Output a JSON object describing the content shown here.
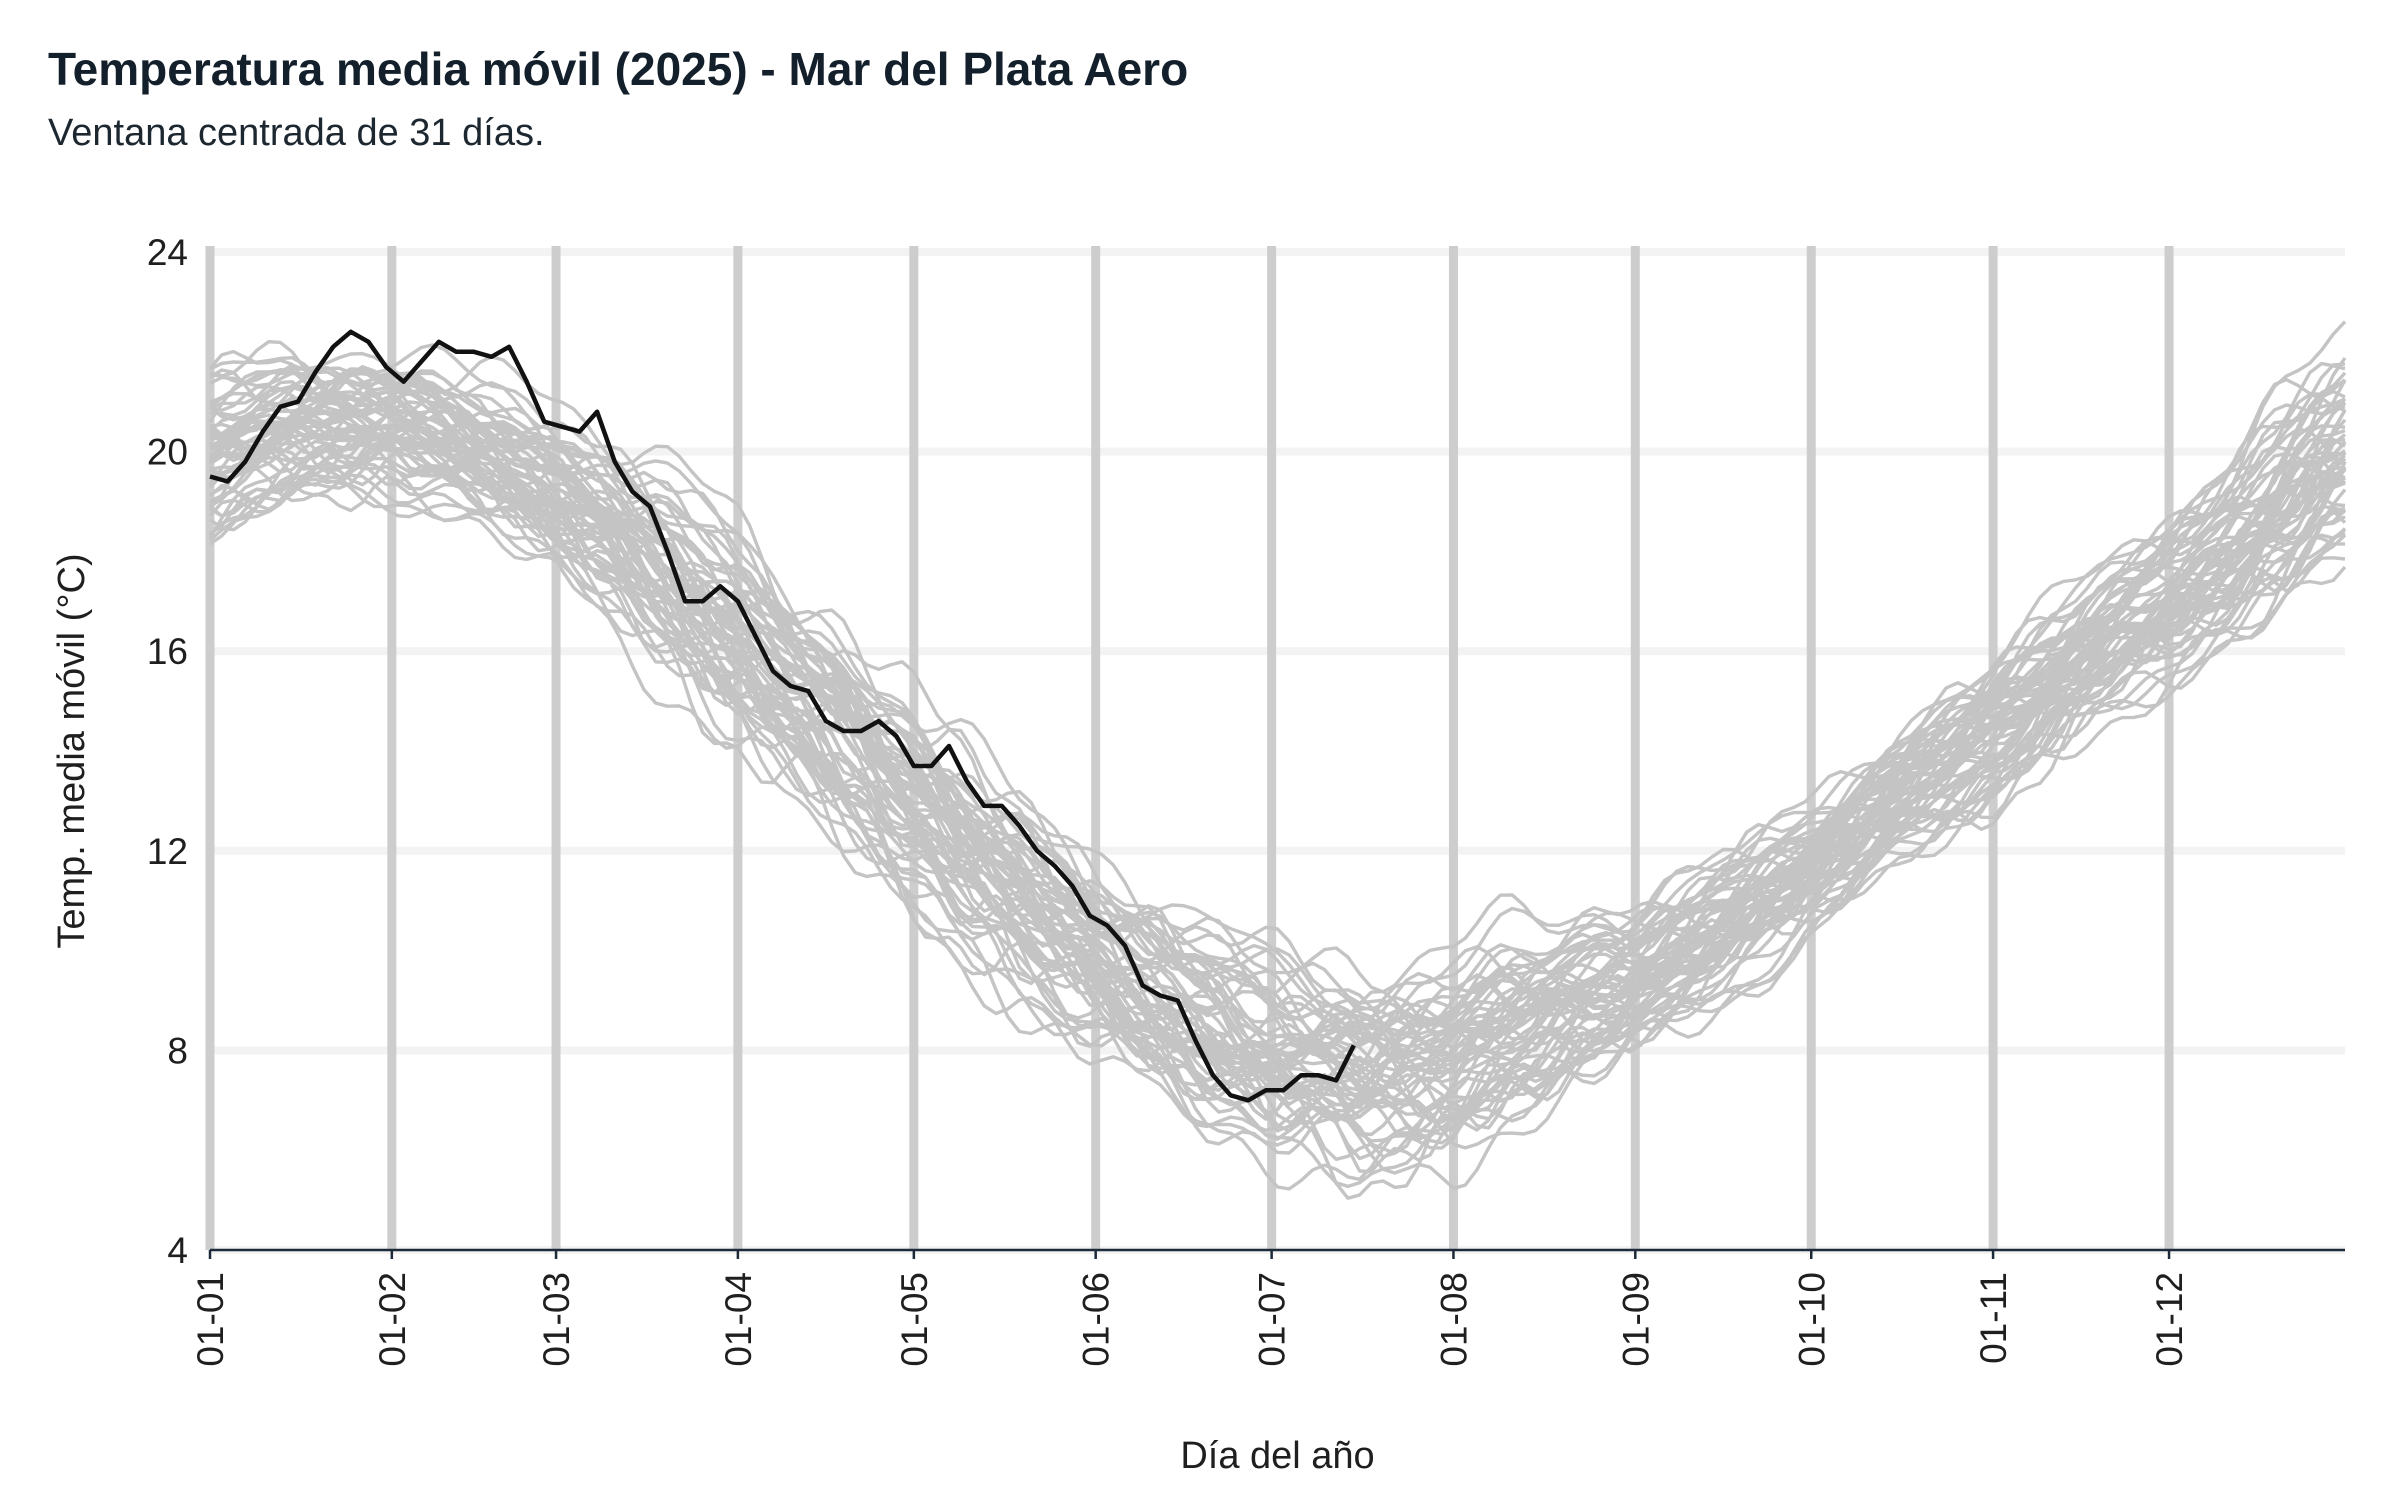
{
  "chart_data": {
    "type": "line",
    "title": "Temperatura media móvil (2025) - Mar del Plata Aero",
    "subtitle": "Ventana centrada de 31 días.",
    "xlabel": "Día del año",
    "ylabel": "Temp. media móvil (°C)",
    "ylim": [
      4,
      24
    ],
    "y_ticks": [
      4,
      8,
      12,
      16,
      20,
      24
    ],
    "xlim": [
      1,
      365
    ],
    "x_ticks": [
      {
        "day": 1,
        "label": "01-01"
      },
      {
        "day": 32,
        "label": "01-02"
      },
      {
        "day": 60,
        "label": "01-03"
      },
      {
        "day": 91,
        "label": "01-04"
      },
      {
        "day": 121,
        "label": "01-05"
      },
      {
        "day": 152,
        "label": "01-06"
      },
      {
        "day": 182,
        "label": "01-07"
      },
      {
        "day": 213,
        "label": "01-08"
      },
      {
        "day": 244,
        "label": "01-09"
      },
      {
        "day": 274,
        "label": "01-10"
      },
      {
        "day": 305,
        "label": "01-11"
      },
      {
        "day": 335,
        "label": "01-12"
      }
    ],
    "grid": true,
    "colors": {
      "current_year": "#111111",
      "historical": "#c4c4c4",
      "grid": "#f3f3f3",
      "month_lines": "#cdcdcd",
      "axis": "#1c2a3a"
    },
    "historical_years_count": 60,
    "historical_climatology": {
      "days": [
        1,
        15,
        32,
        46,
        60,
        75,
        91,
        106,
        121,
        136,
        152,
        167,
        182,
        197,
        213,
        228,
        244,
        259,
        274,
        289,
        305,
        320,
        335,
        350,
        365
      ],
      "mean": [
        19.8,
        20.4,
        20.4,
        20.0,
        19.1,
        17.8,
        16.3,
        14.6,
        12.8,
        11.1,
        9.6,
        8.6,
        7.9,
        7.6,
        7.8,
        8.4,
        9.3,
        10.4,
        11.6,
        13.0,
        14.4,
        15.7,
        17.0,
        18.4,
        19.7
      ],
      "spread": [
        1.1,
        1.0,
        1.0,
        1.0,
        1.1,
        1.3,
        1.4,
        1.4,
        1.4,
        1.4,
        1.3,
        1.3,
        1.3,
        1.4,
        1.4,
        1.2,
        1.0,
        1.0,
        0.9,
        0.9,
        1.0,
        1.0,
        1.1,
        1.3,
        1.5
      ]
    },
    "series": [
      {
        "name": "2025",
        "x": [
          1,
          4,
          7,
          10,
          13,
          16,
          19,
          22,
          25,
          28,
          31,
          34,
          37,
          40,
          43,
          46,
          49,
          52,
          55,
          58,
          61,
          64,
          67,
          70,
          73,
          76,
          79,
          82,
          85,
          88,
          91,
          94,
          97,
          100,
          103,
          106,
          109,
          112,
          115,
          118,
          121,
          124,
          127,
          130,
          133,
          136,
          139,
          142,
          145,
          148,
          151,
          154,
          157,
          160,
          163,
          166,
          169,
          172,
          175,
          178,
          181,
          184,
          187,
          190,
          193,
          196
        ],
        "y": [
          19.5,
          19.4,
          19.8,
          20.4,
          20.9,
          21.0,
          21.6,
          22.1,
          22.4,
          22.2,
          21.7,
          21.4,
          21.8,
          22.2,
          22.0,
          22.0,
          21.9,
          22.1,
          21.4,
          20.6,
          20.5,
          20.4,
          20.8,
          19.8,
          19.2,
          18.9,
          18.0,
          17.0,
          17.0,
          17.3,
          17.0,
          16.3,
          15.6,
          15.3,
          15.2,
          14.6,
          14.4,
          14.4,
          14.6,
          14.3,
          13.7,
          13.7,
          14.1,
          13.4,
          12.9,
          12.9,
          12.5,
          12.0,
          11.7,
          11.3,
          10.7,
          10.5,
          10.1,
          9.3,
          9.1,
          9.0,
          8.2,
          7.5,
          7.1,
          7.0,
          7.2,
          7.2,
          7.5,
          7.5,
          7.4,
          8.1
        ]
      }
    ]
  }
}
